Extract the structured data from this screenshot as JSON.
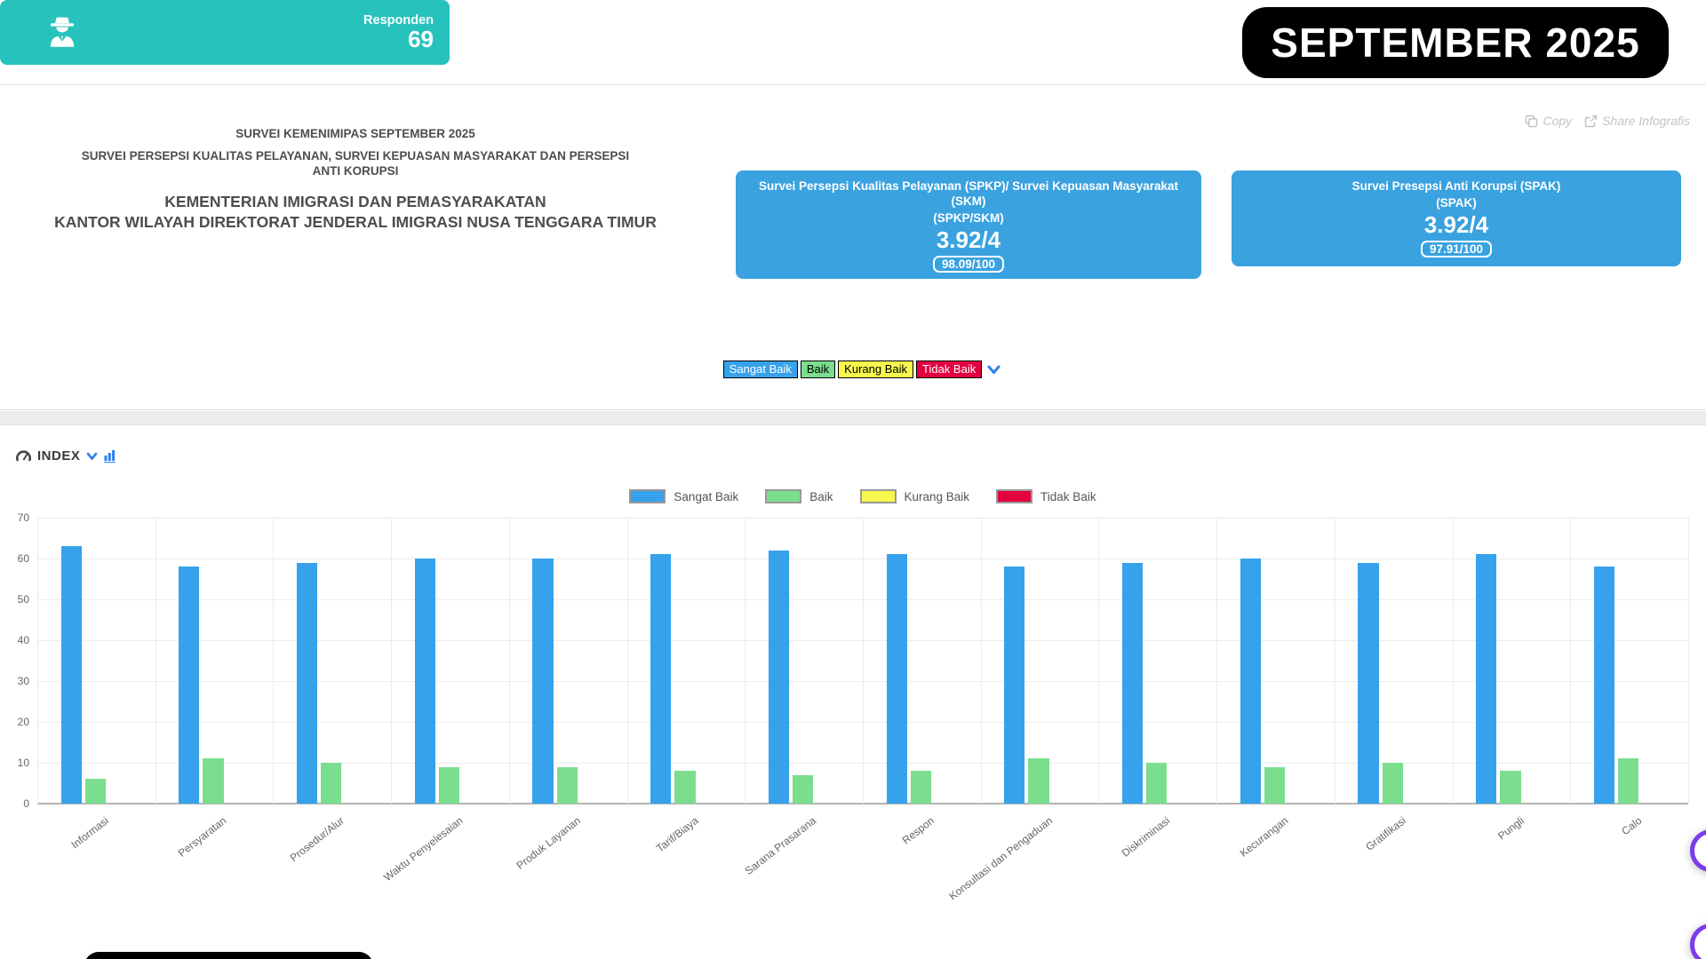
{
  "month_badge": "SEPTEMBER 2025",
  "toolbar": {
    "copy_label": "Copy",
    "share_label": "Share Infografis"
  },
  "header": {
    "line1": "SURVEI KEMENIMIPAS SEPTEMBER 2025",
    "line2": "SURVEI PERSEPSI KUALITAS PELAYANAN, SURVEI KEPUASAN MASYARAKAT DAN PERSEPSI ANTI KORUPSI",
    "line3": "KEMENTERIAN IMIGRASI DAN PEMASYARAKATAN",
    "line4": "KANTOR WILAYAH DIREKTORAT JENDERAL IMIGRASI NUSA TENGGARA TIMUR"
  },
  "cards": {
    "spkp": {
      "title": "Survei Persepsi Kualitas Pelayanan (SPKP)/ Survei Kepuasan Masyarakat (SKM)",
      "subtitle": "(SPKP/SKM)",
      "score": "3.92/4",
      "score100": "98.09/100",
      "bg": "#39A2DF"
    },
    "spak": {
      "title": "Survei Presepsi Anti Korupsi (SPAK)",
      "subtitle": "(SPAK)",
      "score": "3.92/4",
      "score100": "97.91/100",
      "bg": "#39A2DF"
    },
    "responden": {
      "label": "Responden",
      "value": "69",
      "bg": "#28C2BC",
      "icon": "user-secret-icon"
    }
  },
  "rating_chips": [
    {
      "label": "Sangat Baik",
      "bg": "#36A2EB",
      "fg": "#ffffff"
    },
    {
      "label": "Baik",
      "bg": "#7ADE8E",
      "fg": "#000000"
    },
    {
      "label": "Kurang Baik",
      "bg": "#F7F74E",
      "fg": "#000000"
    },
    {
      "label": "Tidak Baik",
      "bg": "#E4003F",
      "fg": "#ffffff"
    }
  ],
  "index_section": {
    "title": "INDEX"
  },
  "chart_data": {
    "type": "bar",
    "title": "INDEX",
    "categories": [
      "Informasi",
      "Persyaratan",
      "Prosedur/Alur",
      "Waktu Penyelesaian",
      "Produk Layanan",
      "Tarif/Biaya",
      "Sarana Prasarana",
      "Respon",
      "Konsultasi dan Pengaduan",
      "Diskriminasi",
      "Kecurangan",
      "Gratifikasi",
      "Pungli",
      "Calo"
    ],
    "series": [
      {
        "name": "Sangat Baik",
        "color": "#36A2EB",
        "values": [
          63,
          58,
          59,
          60,
          60,
          61,
          62,
          61,
          58,
          59,
          60,
          59,
          61,
          58
        ]
      },
      {
        "name": "Baik",
        "color": "#7ADE8E",
        "values": [
          6,
          11,
          10,
          9,
          9,
          8,
          7,
          8,
          11,
          10,
          9,
          10,
          8,
          11
        ]
      },
      {
        "name": "Kurang Baik",
        "color": "#F7F74E",
        "values": [
          0,
          0,
          0,
          0,
          0,
          0,
          0,
          0,
          0,
          0,
          0,
          0,
          0,
          0
        ]
      },
      {
        "name": "Tidak Baik",
        "color": "#E4003F",
        "values": [
          0,
          0,
          0,
          0,
          0,
          0,
          0,
          0,
          0,
          0,
          0,
          0,
          0,
          0
        ]
      }
    ],
    "ylabel": "",
    "xlabel": "",
    "ylim": [
      0,
      70
    ],
    "ytick_step": 10,
    "grid": true,
    "legend_position": "top"
  }
}
